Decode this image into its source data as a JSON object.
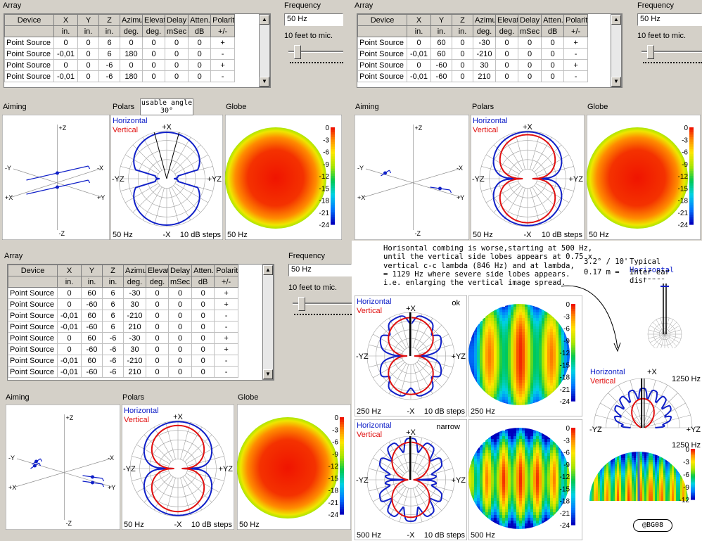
{
  "panels": {
    "p1": {
      "array_title": "Array",
      "frequency_title": "Frequency",
      "frequency_value": "50 Hz",
      "distance_label": "10 feet to mic.",
      "headers": [
        "Device",
        "X",
        "Y",
        "Z",
        "Azimuth",
        "Elevation",
        "Delay",
        "Atten.",
        "Polarity"
      ],
      "units": [
        "",
        "in.",
        "in.",
        "in.",
        "deg.",
        "deg.",
        "mSec",
        "dB",
        "+/-"
      ],
      "rows": [
        [
          "Point Source",
          "0",
          "0",
          "6",
          "0",
          "0",
          "0",
          "0",
          "+"
        ],
        [
          "Point Source",
          "-0,01",
          "0",
          "6",
          "180",
          "0",
          "0",
          "0",
          "-"
        ],
        [
          "Point Source",
          "0",
          "0",
          "-6",
          "0",
          "0",
          "0",
          "0",
          "+"
        ],
        [
          "Point Source",
          "-0,01",
          "0",
          "-6",
          "180",
          "0",
          "0",
          "0",
          "-"
        ]
      ],
      "aiming_title": "Aiming",
      "polars_title": "Polars",
      "globe_title": "Globe",
      "polar_freq": "50 Hz",
      "polar_steps": "10 dB steps",
      "globe_freq": "50 Hz",
      "usable_angle": "usable angle",
      "usable_value": "30°"
    },
    "p2": {
      "array_title": "Array",
      "frequency_title": "Frequency",
      "frequency_value": "50 Hz",
      "distance_label": "10 feet to mic.",
      "headers": [
        "Device",
        "X",
        "Y",
        "Z",
        "Azimuth",
        "Elevation",
        "Delay",
        "Atten.",
        "Polarity"
      ],
      "units": [
        "",
        "in.",
        "in.",
        "in.",
        "deg.",
        "deg.",
        "mSec",
        "dB",
        "+/-"
      ],
      "rows": [
        [
          "Point Source",
          "0",
          "60",
          "0",
          "-30",
          "0",
          "0",
          "0",
          "+"
        ],
        [
          "Point Source",
          "-0,01",
          "60",
          "0",
          "-210",
          "0",
          "0",
          "0",
          "-"
        ],
        [
          "Point Source",
          "0",
          "-60",
          "0",
          "30",
          "0",
          "0",
          "0",
          "+"
        ],
        [
          "Point Source",
          "-0,01",
          "-60",
          "0",
          "210",
          "0",
          "0",
          "0",
          "-"
        ]
      ],
      "aiming_title": "Aiming",
      "polars_title": "Polars",
      "globe_title": "Globe",
      "polar_freq": "50 Hz",
      "polar_steps": "10 dB steps",
      "globe_freq": "50 Hz"
    },
    "p3": {
      "array_title": "Array",
      "frequency_title": "Frequency",
      "frequency_value": "50 Hz",
      "distance_label": "10 feet to mic.",
      "headers": [
        "Device",
        "X",
        "Y",
        "Z",
        "Azimuth",
        "Elevation",
        "Delay",
        "Atten.",
        "Polarity"
      ],
      "units": [
        "",
        "in.",
        "in.",
        "in.",
        "deg.",
        "deg.",
        "mSec",
        "dB",
        "+/-"
      ],
      "rows": [
        [
          "Point Source",
          "0",
          "60",
          "6",
          "-30",
          "0",
          "0",
          "0",
          "+"
        ],
        [
          "Point Source",
          "0",
          "-60",
          "6",
          "30",
          "0",
          "0",
          "0",
          "+"
        ],
        [
          "Point Source",
          "-0,01",
          "60",
          "6",
          "-210",
          "0",
          "0",
          "0",
          "-"
        ],
        [
          "Point Source",
          "-0,01",
          "-60",
          "6",
          "210",
          "0",
          "0",
          "0",
          "-"
        ],
        [
          "Point Source",
          "0",
          "60",
          "-6",
          "-30",
          "0",
          "0",
          "0",
          "+"
        ],
        [
          "Point Source",
          "0",
          "-60",
          "-6",
          "30",
          "0",
          "0",
          "0",
          "+"
        ],
        [
          "Point Source",
          "-0,01",
          "60",
          "-6",
          "-210",
          "0",
          "0",
          "0",
          "-"
        ],
        [
          "Point Source",
          "-0,01",
          "-60",
          "-6",
          "210",
          "0",
          "0",
          "0",
          "-"
        ]
      ],
      "aiming_title": "Aiming",
      "polars_title": "Polars",
      "globe_title": "Globe",
      "polar_freq": "50 Hz",
      "polar_steps": "10 dB steps",
      "globe_freq": "50 Hz"
    }
  },
  "polar_labels": {
    "horizontal": "Horizontal",
    "vertical": "Vertical",
    "top": "+X",
    "bottom": "-X",
    "left": "-YZ",
    "right": "+YZ"
  },
  "aiming_labels": {
    "pz": "+Z",
    "mz": "-Z",
    "py": "+Y",
    "my": "-Y",
    "px": "+X",
    "mx": "-X"
  },
  "scale_ticks": [
    "0",
    "-3",
    "-6",
    "-9",
    "-12",
    "-15",
    "-18",
    "-21",
    "-24"
  ],
  "scale_ticks_short": [
    "0",
    "-3",
    "-6",
    "-9",
    "-12"
  ],
  "annotation": [
    "Horisontal combing is worse,starting at 500 Hz,",
    "until the vertical side lobes appears at 0.75 x",
    "vertical c-c lambda  (846 Hz) and at lambda,",
    "= 1129 Hz where severe side lobes appears.",
    "i.e. enlarging the vertical image spread."
  ],
  "typical": {
    "angle": "3.2° / 10'",
    "distance": "0.17 m =",
    "label1": "Typical",
    "label2": "Horizontal",
    "label3": "Inter ear distance"
  },
  "examples": {
    "ok_label": "ok",
    "ok_freq": "250 Hz",
    "ok_globe_freq": "250 Hz",
    "steps": "10 dB steps",
    "narrow_label": "narrow",
    "narrow_freq": "500 Hz",
    "narrow_globe_freq": "500 Hz",
    "f1250": "1250 Hz",
    "f1250b": "1250 Hz"
  },
  "signature": "@BG08",
  "colors": {
    "horizontal": "#1020c8",
    "vertical": "#e01010"
  }
}
